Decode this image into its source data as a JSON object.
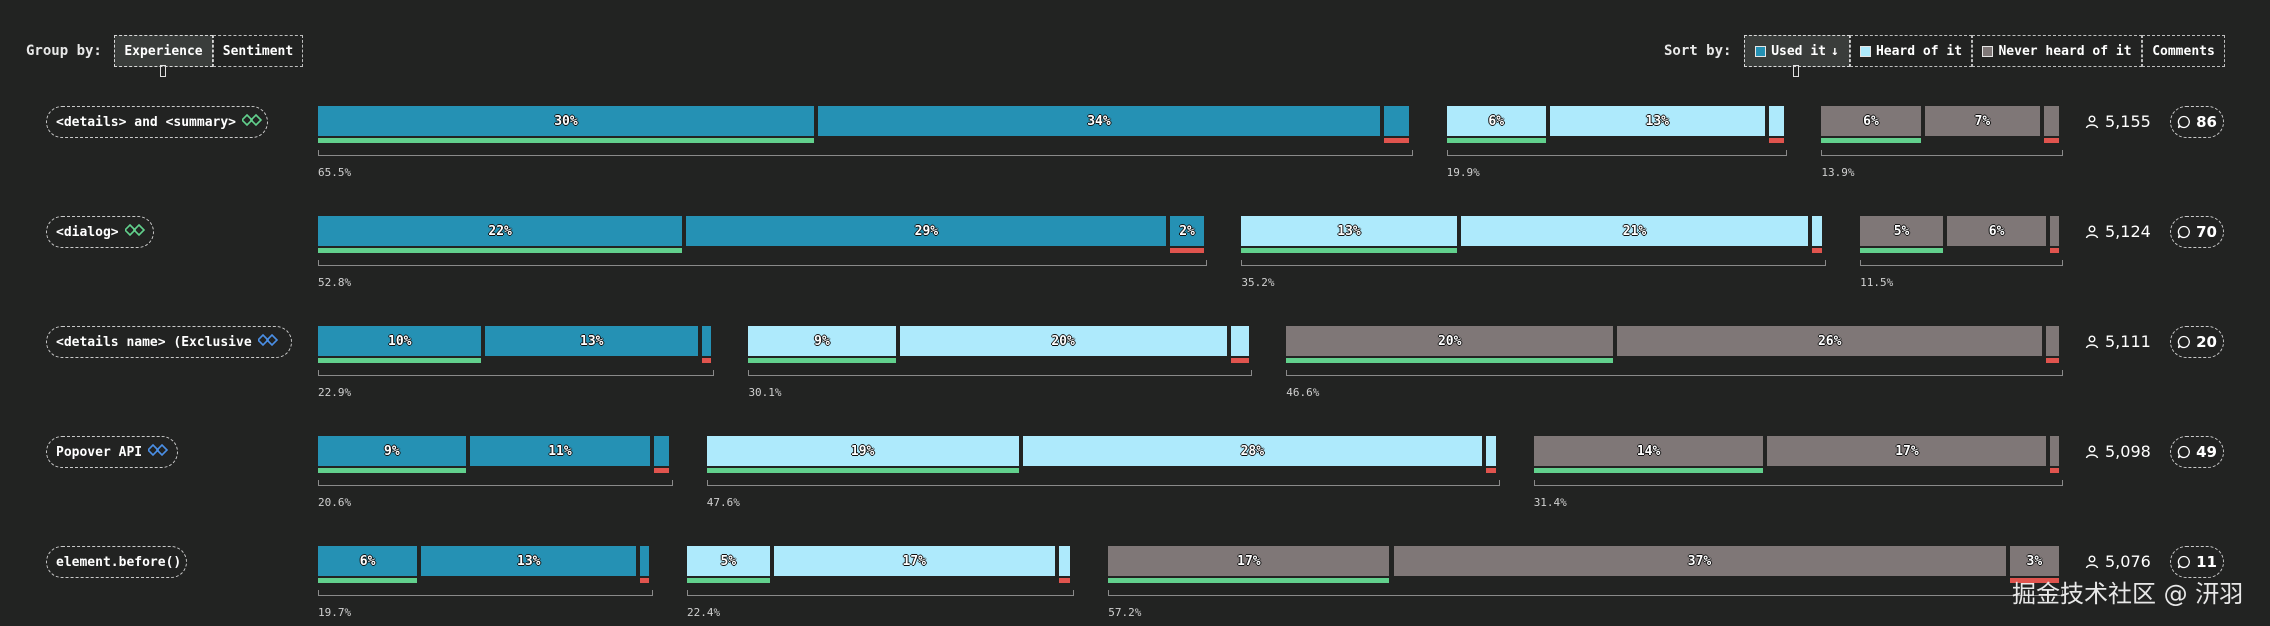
{
  "controls": {
    "group_by_label": "Group by:",
    "group_by": [
      "Experience",
      "Sentiment"
    ],
    "group_by_active": "Experience",
    "sort_by_label": "Sort by:",
    "sort_by": [
      {
        "label": "Used it",
        "suffix": "↓",
        "swatch": "#2591b4",
        "active": true
      },
      {
        "label": "Heard of it",
        "swatch": "#aeeafc",
        "active": false
      },
      {
        "label": "Never heard of it",
        "swatch": "#7f7777",
        "active": false
      },
      {
        "label": "Comments",
        "active": false
      }
    ]
  },
  "colors": {
    "used": "#2591b4",
    "heard": "#aeeafc",
    "never": "#7f7777",
    "positive": "#62d18d",
    "negative": "#e0544e",
    "background": "#222322"
  },
  "chart_data": {
    "type": "bar",
    "orientation": "horizontal-stacked",
    "groups": [
      "Used it",
      "Heard of it",
      "Never heard of it"
    ],
    "features": [
      {
        "name": "<details> and <summary>",
        "icon": "baseline-widely-available-icon",
        "respondents": "5,155",
        "comments": "86",
        "used": {
          "total": "65.5%",
          "segments": [
            {
              "value": 30,
              "label": "30%"
            },
            {
              "value": 34,
              "label": "34%"
            },
            {
              "value": 1.5,
              "label": ""
            }
          ]
        },
        "heard": {
          "total": "19.9%",
          "segments": [
            {
              "value": 6,
              "label": "6%"
            },
            {
              "value": 13,
              "label": "13%"
            },
            {
              "value": 0.9,
              "label": ""
            }
          ]
        },
        "never": {
          "total": "13.9%",
          "segments": [
            {
              "value": 6,
              "label": "6%"
            },
            {
              "value": 7,
              "label": "7%"
            },
            {
              "value": 0.9,
              "label": ""
            }
          ]
        }
      },
      {
        "name": "<dialog>",
        "icon": "baseline-widely-available-icon",
        "respondents": "5,124",
        "comments": "70",
        "used": {
          "total": "52.8%",
          "segments": [
            {
              "value": 22,
              "label": "22%"
            },
            {
              "value": 29,
              "label": "29%"
            },
            {
              "value": 2,
              "label": "2%"
            }
          ]
        },
        "heard": {
          "total": "35.2%",
          "segments": [
            {
              "value": 13,
              "label": "13%"
            },
            {
              "value": 21,
              "label": "21%"
            },
            {
              "value": 0.6,
              "label": ""
            }
          ]
        },
        "never": {
          "total": "11.5%",
          "segments": [
            {
              "value": 5,
              "label": "5%"
            },
            {
              "value": 6,
              "label": "6%"
            },
            {
              "value": 0.2,
              "label": ""
            }
          ]
        }
      },
      {
        "name": "<details name> (Exclusive",
        "icon": "baseline-newly-available-icon",
        "respondents": "5,111",
        "comments": "20",
        "used": {
          "total": "22.9%",
          "segments": [
            {
              "value": 10,
              "label": "10%"
            },
            {
              "value": 13,
              "label": "13%"
            },
            {
              "value": 0.3,
              "label": ""
            }
          ]
        },
        "heard": {
          "total": "30.1%",
          "segments": [
            {
              "value": 9,
              "label": "9%"
            },
            {
              "value": 20,
              "label": "20%"
            },
            {
              "value": 1.1,
              "label": ""
            }
          ]
        },
        "never": {
          "total": "46.6%",
          "segments": [
            {
              "value": 20,
              "label": "20%"
            },
            {
              "value": 26,
              "label": "26%"
            },
            {
              "value": 0.8,
              "label": ""
            }
          ]
        }
      },
      {
        "name": "Popover API",
        "icon": "baseline-newly-available-icon",
        "respondents": "5,098",
        "comments": "49",
        "used": {
          "total": "20.6%",
          "segments": [
            {
              "value": 9,
              "label": "9%"
            },
            {
              "value": 11,
              "label": "11%"
            },
            {
              "value": 0.9,
              "label": ""
            }
          ]
        },
        "heard": {
          "total": "47.6%",
          "segments": [
            {
              "value": 19,
              "label": "19%"
            },
            {
              "value": 28,
              "label": "28%"
            },
            {
              "value": 0.6,
              "label": ""
            }
          ]
        },
        "never": {
          "total": "31.4%",
          "segments": [
            {
              "value": 14,
              "label": "14%"
            },
            {
              "value": 17,
              "label": "17%"
            },
            {
              "value": 0.4,
              "label": ""
            }
          ]
        }
      },
      {
        "name": "element.before()",
        "icon": "",
        "respondents": "5,076",
        "comments": "11",
        "used": {
          "total": "19.7%",
          "segments": [
            {
              "value": 6,
              "label": "6%"
            },
            {
              "value": 13,
              "label": "13%"
            },
            {
              "value": 0.1,
              "label": ""
            }
          ]
        },
        "heard": {
          "total": "22.4%",
          "segments": [
            {
              "value": 5,
              "label": "5%"
            },
            {
              "value": 17,
              "label": "17%"
            },
            {
              "value": 0.7,
              "label": ""
            }
          ]
        },
        "never": {
          "total": "57.2%",
          "segments": [
            {
              "value": 17,
              "label": "17%"
            },
            {
              "value": 37,
              "label": "37%"
            },
            {
              "value": 3,
              "label": "3%"
            }
          ]
        }
      }
    ]
  },
  "watermark": "掘金技术社区 @ 汧羽"
}
